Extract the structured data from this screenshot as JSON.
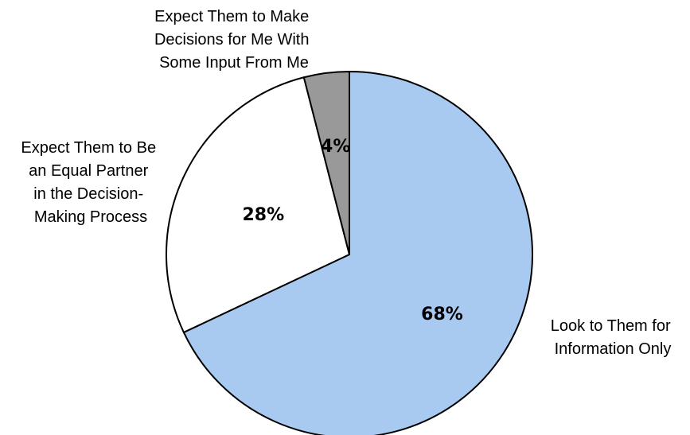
{
  "chart_data": {
    "type": "pie",
    "start_angle_deg": 0,
    "direction": "clockwise",
    "slices": [
      {
        "label_lines": [
          "Look to Them for",
          "Information Only"
        ],
        "value": 68,
        "value_label": "68%",
        "color": "#a9caf0"
      },
      {
        "label_lines": [
          "Expect Them to Be",
          "an Equal Partner",
          "in the Decision-",
          "Making Process"
        ],
        "value": 28,
        "value_label": "28%",
        "color": "#ffffff"
      },
      {
        "label_lines": [
          "Expect Them to Make",
          "Decisions for Me With",
          "Some Input From Me"
        ],
        "value": 4,
        "value_label": "4%",
        "color": "#999999"
      }
    ],
    "stroke_color": "#000000"
  }
}
